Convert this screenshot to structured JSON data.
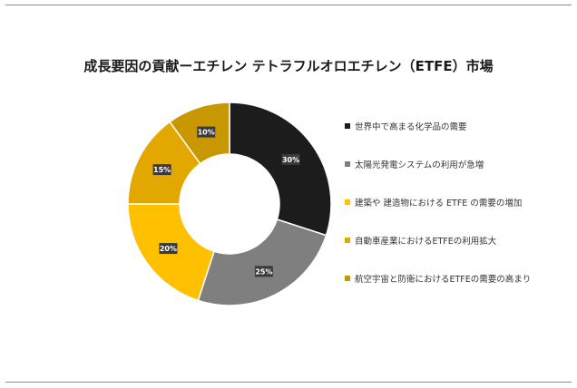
{
  "chart_data": {
    "type": "pie",
    "title": "成長要因の貢献ーエチレン テトラフルオロエチレン（ETFE）市場",
    "donut": true,
    "legend_position": "right",
    "categories": [
      "世界中で高まる化学品の需要",
      "太陽光発電システムの利用が急増",
      "建築や 建造物における ETFE の需要の増加",
      "自動車産業におけるETFEの利用拡大",
      "航空宇宙と防衛におけるETFEの需要の高まり"
    ],
    "values": [
      30,
      25,
      20,
      15,
      10
    ],
    "data_labels": [
      "30%",
      "25%",
      "20%",
      "15%",
      "10%"
    ],
    "colors": [
      "#1c1c1c",
      "#7f7f7f",
      "#ffc000",
      "#e2a800",
      "#c99700"
    ]
  }
}
